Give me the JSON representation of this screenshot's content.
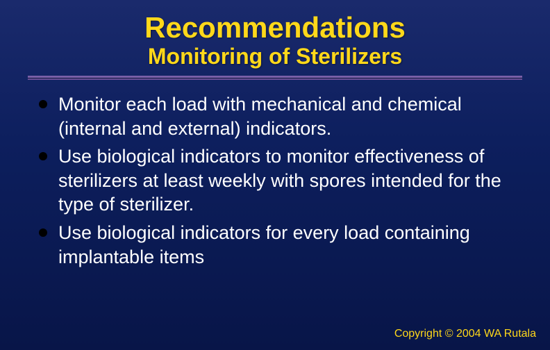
{
  "slide": {
    "title": "Recommendations",
    "subtitle": "Monitoring of Sterilizers",
    "bullets": [
      "Monitor each load with mechanical and chemical (internal and external) indicators.",
      "Use biological indicators to monitor effectiveness of sterilizers at least weekly with spores intended for the type of sterilizer.",
      "Use biological indicators for every load containing implantable items"
    ],
    "copyright": "Copyright © 2004 WA Rutala"
  },
  "style": {
    "background_gradient": [
      "#1a2a6c",
      "#0d1f5e",
      "#081548"
    ],
    "title_color": "#ffd81a",
    "title_fontsize": 42,
    "subtitle_fontsize": 32,
    "body_color": "#ffffff",
    "body_fontsize": 27,
    "bullet_color": "#000000",
    "divider_color": "#7a5fa8",
    "copyright_color": "#ffd81a",
    "copyright_fontsize": 16,
    "font_family": "Arial"
  }
}
